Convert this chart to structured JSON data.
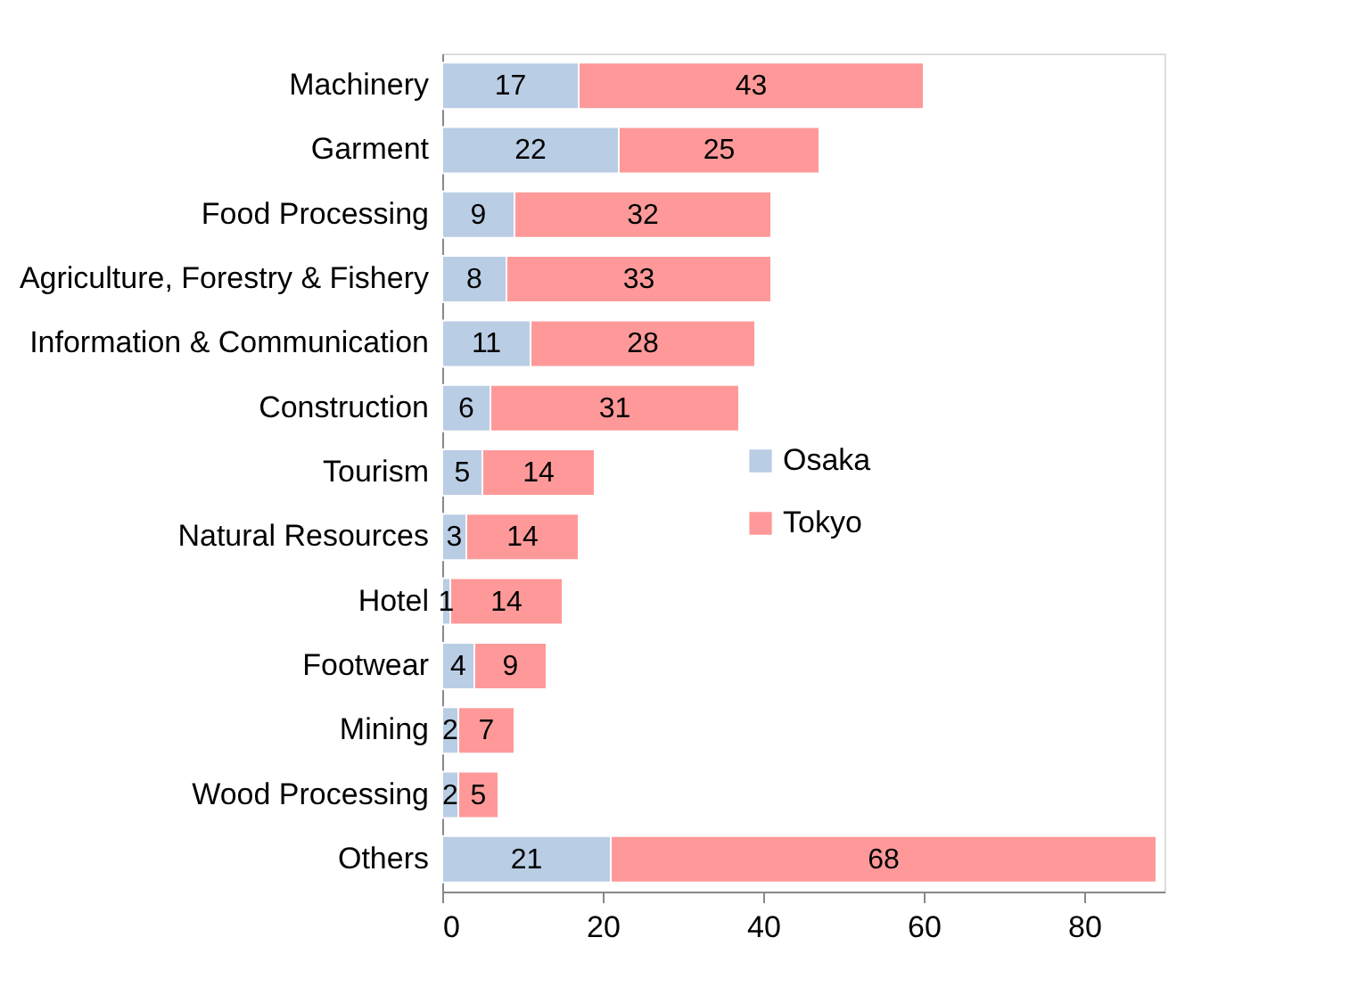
{
  "chart_data": {
    "type": "bar",
    "orientation": "horizontal",
    "stacked": true,
    "data_labels": true,
    "grid": false,
    "legend": "right",
    "categories": [
      "Machinery",
      "Garment",
      "Food Processing",
      "Agriculture, Forestry & Fishery",
      "Information & Communication",
      "Construction",
      "Tourism",
      "Natural Resources",
      "Hotel",
      "Footwear",
      "Mining",
      "Wood Processing",
      "Others"
    ],
    "series": [
      {
        "name": "Osaka",
        "color": "#b9cde5",
        "values": [
          17,
          22,
          9,
          8,
          11,
          6,
          5,
          3,
          1,
          4,
          2,
          2,
          21
        ]
      },
      {
        "name": "Tokyo",
        "color": "#ff9999",
        "values": [
          43,
          25,
          32,
          33,
          28,
          31,
          14,
          14,
          14,
          9,
          7,
          5,
          68
        ]
      }
    ],
    "xlim": [
      0,
      90
    ],
    "xticks": [
      0,
      20,
      40,
      60,
      80
    ]
  }
}
